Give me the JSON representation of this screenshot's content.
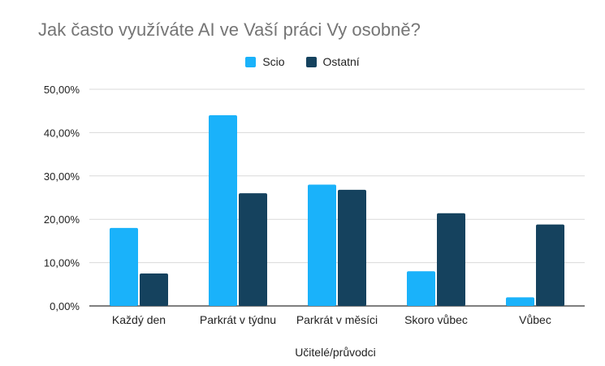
{
  "chart_data": {
    "type": "bar",
    "title": "Jak často využíváte AI ve Vaší práci Vy osobně?",
    "xlabel": "Učitelé/průvodci",
    "ylabel": "",
    "categories": [
      "Každý den",
      "Parkrát v týdnu",
      "Parkrát v měsíci",
      "Skoro vůbec",
      "Vůbec"
    ],
    "series": [
      {
        "name": "Scio",
        "color": "#1ab2fa",
        "values": [
          18.0,
          44.0,
          28.0,
          8.0,
          2.0
        ]
      },
      {
        "name": "Ostatní",
        "color": "#15425e",
        "values": [
          7.5,
          26.0,
          26.8,
          21.4,
          18.8
        ]
      }
    ],
    "ylim": [
      0,
      50
    ],
    "yticks": [
      "0,00%",
      "10,00%",
      "20,00%",
      "30,00%",
      "40,00%",
      "50,00%"
    ],
    "grid": true,
    "legend_position": "top"
  }
}
